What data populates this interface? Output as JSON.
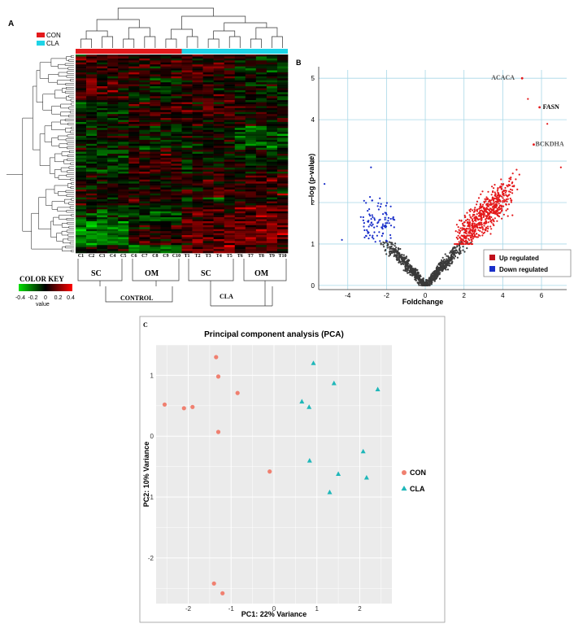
{
  "panel_a": {
    "label": "A",
    "legend": [
      {
        "name": "CON",
        "color": "#e41a1c"
      },
      {
        "name": "CLA",
        "color": "#1ed3e6"
      }
    ],
    "columns": [
      "C1",
      "C2",
      "C3",
      "C4",
      "C5",
      "C6",
      "C7",
      "C8",
      "C9",
      "C10",
      "T1",
      "T2",
      "T3",
      "T4",
      "T5",
      "T6",
      "T7",
      "T8",
      "T9",
      "T10"
    ],
    "group_labels": {
      "sc_con": "SC",
      "om_con": "OM",
      "sc_cla": "SC",
      "om_cla": "OM",
      "control": "CONTROL",
      "cla": "CLA"
    },
    "color_key": {
      "title": "COLOR KEY",
      "ticks": [
        "-0.4",
        "-0.2",
        "0",
        "0.2",
        "0.4"
      ],
      "value_label": "value"
    }
  },
  "panel_b_label": "B",
  "panel_c_label": "C",
  "chart_data": [
    {
      "type": "heatmap",
      "rows": 100,
      "columns": [
        "C1",
        "C2",
        "C3",
        "C4",
        "C5",
        "C6",
        "C7",
        "C8",
        "C9",
        "C10",
        "T1",
        "T2",
        "T3",
        "T4",
        "T5",
        "T6",
        "T7",
        "T8",
        "T9",
        "T10"
      ],
      "color_scale": {
        "min": -0.4,
        "max": 0.4,
        "low": "#00e000",
        "mid": "#000000",
        "high": "#ff0000"
      }
    },
    {
      "type": "scatter",
      "xlabel": "Foldchange",
      "ylabel": "—log (p-value)",
      "xlim": [
        -5.5,
        7.3
      ],
      "ylim": [
        -0.1,
        5.2
      ],
      "xticks": [
        -4,
        -2,
        0,
        2,
        4,
        6
      ],
      "yticks": [
        0,
        1,
        2,
        3,
        4,
        5
      ],
      "grid": true,
      "legend_position": "bottom-right",
      "series": [
        {
          "name": "Up regulated",
          "color": "#e41a1c"
        },
        {
          "name": "Down regulated",
          "color": "#1a2fc9"
        },
        {
          "name": "",
          "color": "#3a3a3a"
        }
      ],
      "annotations": [
        {
          "text": "ACACA",
          "x": 5.0,
          "y": 5.0
        },
        {
          "text": "FASN",
          "x": 5.9,
          "y": 4.3
        },
        {
          "text": "BCKDHA",
          "x": 5.6,
          "y": 3.4
        }
      ]
    },
    {
      "type": "scatter",
      "title": "Principal component analysis (PCA)",
      "xlabel": "PC1: 22% Variance",
      "ylabel": "PC2: 10% Variance",
      "xlim": [
        -2.75,
        2.75
      ],
      "ylim": [
        -2.75,
        1.5
      ],
      "xticks": [
        -2,
        -1,
        0,
        1,
        2
      ],
      "yticks": [
        1,
        0,
        -1,
        -2
      ],
      "grid": true,
      "legend_position": "right",
      "series": [
        {
          "name": "CON",
          "color": "#f08070",
          "shape": "circle",
          "x": [
            -2.55,
            -2.1,
            -1.9,
            -1.35,
            -1.3,
            -1.3,
            -0.85,
            -0.1,
            -1.4,
            -1.2
          ],
          "y": [
            0.52,
            0.46,
            0.48,
            1.3,
            0.98,
            0.07,
            0.71,
            -0.58,
            -2.42,
            -2.58
          ]
        },
        {
          "name": "CLA",
          "color": "#1fb7b9",
          "shape": "triangle",
          "x": [
            0.65,
            0.82,
            0.92,
            1.4,
            2.42,
            0.83,
            1.5,
            1.3,
            2.08,
            2.16
          ],
          "y": [
            0.57,
            0.48,
            1.2,
            0.87,
            0.77,
            -0.4,
            -0.62,
            -0.92,
            -0.25,
            -0.68
          ]
        }
      ]
    }
  ]
}
